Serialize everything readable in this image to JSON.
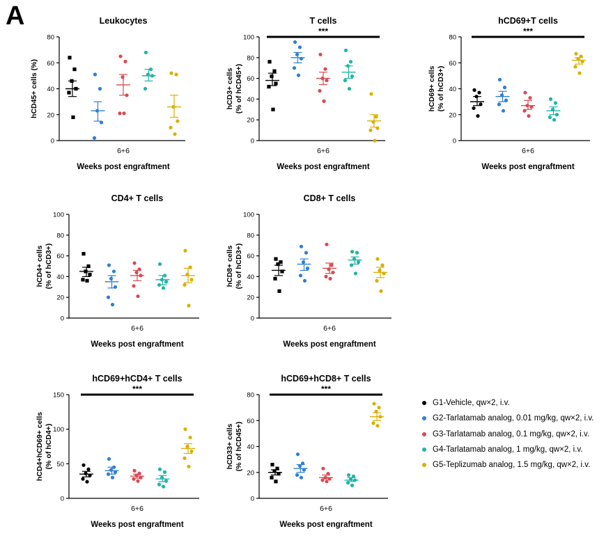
{
  "figure": {
    "panel_label": "A"
  },
  "legend": {
    "items": [
      {
        "label": "G1-Vehicle, qw×2, i.v.",
        "color": "#000000"
      },
      {
        "label": "G2-Tarlatamab analog, 0.01 mg/kg, qw×2, i.v.",
        "color": "#2e7fd6"
      },
      {
        "label": "G3-Tarlatamab analog, 0.1 mg/kg, qw×2, i.v.",
        "color": "#d94a52"
      },
      {
        "label": "G4-Tarlatamab analog, 1 mg/kg, qw×2, i.v.",
        "color": "#1fb5a8"
      },
      {
        "label": "G5-Teplizumab analog, 1.5 mg/kg, qw×2, i.v.",
        "color": "#d8b000"
      }
    ]
  },
  "chart_data": [
    {
      "type": "scatter",
      "title": "Leukocytes",
      "ylabel": "hCD45+ cells (%)",
      "ylabel2": "",
      "xtick": "6+6",
      "xlabel": "Weeks post engraftment",
      "ylim": [
        0,
        80
      ],
      "yticks": [
        0,
        20,
        40,
        60,
        80
      ],
      "significance": null,
      "series": [
        {
          "color": "#000000",
          "marker": "square",
          "points": [
            64,
            55,
            46,
            40,
            37,
            18
          ],
          "mean": 40,
          "sem_range": [
            34,
            46
          ]
        },
        {
          "color": "#2e7fd6",
          "marker": "circle",
          "points": [
            51,
            40,
            23,
            14,
            2
          ],
          "mean": 23,
          "sem_range": [
            15,
            30
          ]
        },
        {
          "color": "#d94a52",
          "marker": "circle",
          "points": [
            65,
            61,
            49,
            35,
            21,
            21
          ],
          "mean": 43,
          "sem_range": [
            35,
            51
          ]
        },
        {
          "color": "#1fb5a8",
          "marker": "circle",
          "points": [
            68,
            55,
            51,
            50,
            40
          ],
          "mean": 50,
          "sem_range": [
            46,
            55
          ]
        },
        {
          "color": "#d8b000",
          "marker": "circle",
          "points": [
            52,
            51,
            26,
            15,
            10,
            5
          ],
          "mean": 26,
          "sem_range": [
            18,
            35
          ]
        }
      ]
    },
    {
      "type": "scatter",
      "title": "T cells",
      "ylabel": "hCD3+ cells",
      "ylabel2": "(% of hCD45+)",
      "xtick": "6+6",
      "xlabel": "Weeks post engraftment",
      "ylim": [
        0,
        100
      ],
      "yticks": [
        0,
        20,
        40,
        60,
        80,
        100
      ],
      "significance": {
        "text": "***",
        "from": 0,
        "to": 4
      },
      "series": [
        {
          "color": "#000000",
          "marker": "square",
          "points": [
            76,
            67,
            62,
            55,
            52,
            30
          ],
          "mean": 58,
          "sem_range": [
            53,
            65
          ]
        },
        {
          "color": "#2e7fd6",
          "marker": "circle",
          "points": [
            95,
            90,
            83,
            79,
            70,
            63
          ],
          "mean": 80,
          "sem_range": [
            75,
            85
          ]
        },
        {
          "color": "#d94a52",
          "marker": "circle",
          "points": [
            83,
            69,
            60,
            58,
            48,
            38
          ],
          "mean": 60,
          "sem_range": [
            54,
            66
          ]
        },
        {
          "color": "#1fb5a8",
          "marker": "circle",
          "points": [
            87,
            76,
            72,
            62,
            58,
            50
          ],
          "mean": 66,
          "sem_range": [
            60,
            72
          ]
        },
        {
          "color": "#d8b000",
          "marker": "circle",
          "points": [
            45,
            23,
            18,
            12,
            10,
            0
          ],
          "mean": 19,
          "sem_range": [
            13,
            25
          ]
        }
      ]
    },
    {
      "type": "scatter",
      "title": "hCD69+T cells",
      "ylabel": "hCD69+ cells",
      "ylabel2": "(% of hCD3+)",
      "xtick": "6+6",
      "xlabel": "Weeks post engraftment",
      "ylim": [
        0,
        80
      ],
      "yticks": [
        0,
        20,
        40,
        60,
        80
      ],
      "significance": {
        "text": "***",
        "from": 0,
        "to": 4
      },
      "series": [
        {
          "color": "#000000",
          "marker": "circle",
          "points": [
            39,
            37,
            34,
            28,
            25,
            19
          ],
          "mean": 30,
          "sem_range": [
            27,
            34
          ]
        },
        {
          "color": "#2e7fd6",
          "marker": "circle",
          "points": [
            47,
            41,
            35,
            31,
            28,
            23
          ],
          "mean": 34,
          "sem_range": [
            30,
            38
          ]
        },
        {
          "color": "#d94a52",
          "marker": "circle",
          "points": [
            37,
            33,
            27,
            26,
            23,
            19
          ],
          "mean": 27,
          "sem_range": [
            24,
            31
          ]
        },
        {
          "color": "#1fb5a8",
          "marker": "circle",
          "points": [
            32,
            29,
            24,
            20,
            18,
            16
          ],
          "mean": 23,
          "sem_range": [
            20,
            26
          ]
        },
        {
          "color": "#d8b000",
          "marker": "circle",
          "points": [
            67,
            65,
            63,
            61,
            57,
            52
          ],
          "mean": 62,
          "sem_range": [
            59,
            64
          ]
        }
      ]
    },
    {
      "type": "scatter",
      "title": "CD4+ T cells",
      "ylabel": "hCD4+ cells",
      "ylabel2": "(% of hCD3+)",
      "xtick": "6+6",
      "xlabel": "Weeks post engraftment",
      "ylim": [
        0,
        100
      ],
      "yticks": [
        0,
        20,
        40,
        60,
        80,
        100
      ],
      "significance": null,
      "series": [
        {
          "color": "#000000",
          "marker": "square",
          "points": [
            62,
            50,
            45,
            42,
            37,
            36
          ],
          "mean": 45,
          "sem_range": [
            40,
            49
          ]
        },
        {
          "color": "#2e7fd6",
          "marker": "circle",
          "points": [
            51,
            45,
            38,
            30,
            20,
            13
          ],
          "mean": 35,
          "sem_range": [
            29,
            41
          ]
        },
        {
          "color": "#d94a52",
          "marker": "circle",
          "points": [
            53,
            47,
            44,
            41,
            31,
            21
          ],
          "mean": 41,
          "sem_range": [
            36,
            46
          ]
        },
        {
          "color": "#1fb5a8",
          "marker": "circle",
          "points": [
            52,
            41,
            37,
            35,
            32,
            29
          ],
          "mean": 37,
          "sem_range": [
            32,
            41
          ]
        },
        {
          "color": "#d8b000",
          "marker": "circle",
          "points": [
            65,
            49,
            42,
            37,
            32,
            12
          ],
          "mean": 41,
          "sem_range": [
            34,
            48
          ]
        }
      ]
    },
    {
      "type": "scatter",
      "title": "CD8+ T cells",
      "ylabel": "hCD8+ cells",
      "ylabel2": "(% of hCD3+)",
      "xtick": "6+6",
      "xlabel": "Weeks post engraftment",
      "ylim": [
        0,
        100
      ],
      "yticks": [
        0,
        20,
        40,
        60,
        80,
        100
      ],
      "significance": null,
      "series": [
        {
          "color": "#000000",
          "marker": "square",
          "points": [
            57,
            54,
            52,
            45,
            38,
            26
          ],
          "mean": 46,
          "sem_range": [
            41,
            51
          ]
        },
        {
          "color": "#2e7fd6",
          "marker": "circle",
          "points": [
            69,
            63,
            54,
            48,
            41,
            36
          ],
          "mean": 52,
          "sem_range": [
            46,
            57
          ]
        },
        {
          "color": "#d94a52",
          "marker": "circle",
          "points": [
            71,
            51,
            47,
            44,
            40,
            38
          ],
          "mean": 48,
          "sem_range": [
            43,
            53
          ]
        },
        {
          "color": "#1fb5a8",
          "marker": "circle",
          "points": [
            64,
            63,
            57,
            54,
            51,
            43
          ],
          "mean": 56,
          "sem_range": [
            52,
            59
          ]
        },
        {
          "color": "#d8b000",
          "marker": "circle",
          "points": [
            57,
            51,
            46,
            43,
            36,
            26
          ],
          "mean": 44,
          "sem_range": [
            39,
            49
          ]
        }
      ]
    },
    {
      "type": "scatter",
      "title": "hCD69+hCD4+ T cells",
      "ylabel": "hCD4+hCD69+ cells",
      "ylabel2": "(% of hCD4+)",
      "xtick": "6+6",
      "xlabel": "Weeks post engraftment",
      "ylim": [
        0,
        150
      ],
      "yticks": [
        0,
        50,
        100,
        150
      ],
      "significance": {
        "text": "***",
        "from": 0,
        "to": 4
      },
      "series": [
        {
          "color": "#000000",
          "marker": "circle",
          "points": [
            48,
            42,
            36,
            33,
            28,
            24
          ],
          "mean": 35,
          "sem_range": [
            31,
            39
          ]
        },
        {
          "color": "#2e7fd6",
          "marker": "circle",
          "points": [
            57,
            45,
            41,
            38,
            35,
            30
          ],
          "mean": 40,
          "sem_range": [
            35,
            45
          ]
        },
        {
          "color": "#d94a52",
          "marker": "circle",
          "points": [
            40,
            36,
            33,
            30,
            28,
            25
          ],
          "mean": 32,
          "sem_range": [
            29,
            35
          ]
        },
        {
          "color": "#1fb5a8",
          "marker": "circle",
          "points": [
            42,
            38,
            30,
            25,
            20,
            17
          ],
          "mean": 28,
          "sem_range": [
            24,
            33
          ]
        },
        {
          "color": "#d8b000",
          "marker": "circle",
          "points": [
            100,
            88,
            75,
            68,
            58,
            46
          ],
          "mean": 72,
          "sem_range": [
            65,
            79
          ]
        }
      ]
    },
    {
      "type": "scatter",
      "title": "hCD69+hCD8+ T cells",
      "ylabel": "hCD33+ cells",
      "ylabel2": "(% of hCD45+)",
      "xtick": "6+6",
      "xlabel": "Weeks post engraftment",
      "ylim": [
        0,
        80
      ],
      "yticks": [
        0,
        20,
        40,
        60,
        80
      ],
      "significance": {
        "text": "***",
        "from": 0,
        "to": 4
      },
      "series": [
        {
          "color": "#000000",
          "marker": "square",
          "points": [
            26,
            23,
            21,
            19,
            16,
            13
          ],
          "mean": 20,
          "sem_range": [
            18,
            22
          ]
        },
        {
          "color": "#2e7fd6",
          "marker": "circle",
          "points": [
            34,
            27,
            25,
            22,
            18,
            16
          ],
          "mean": 23,
          "sem_range": [
            20,
            26
          ]
        },
        {
          "color": "#d94a52",
          "marker": "circle",
          "points": [
            23,
            19,
            16,
            15,
            14,
            13
          ],
          "mean": 16,
          "sem_range": [
            15,
            18
          ]
        },
        {
          "color": "#1fb5a8",
          "marker": "circle",
          "points": [
            18,
            17,
            15,
            14,
            12,
            10
          ],
          "mean": 14,
          "sem_range": [
            13,
            16
          ]
        },
        {
          "color": "#d8b000",
          "marker": "circle",
          "points": [
            73,
            70,
            67,
            63,
            58,
            56
          ],
          "mean": 63,
          "sem_range": [
            60,
            66
          ]
        }
      ]
    }
  ]
}
